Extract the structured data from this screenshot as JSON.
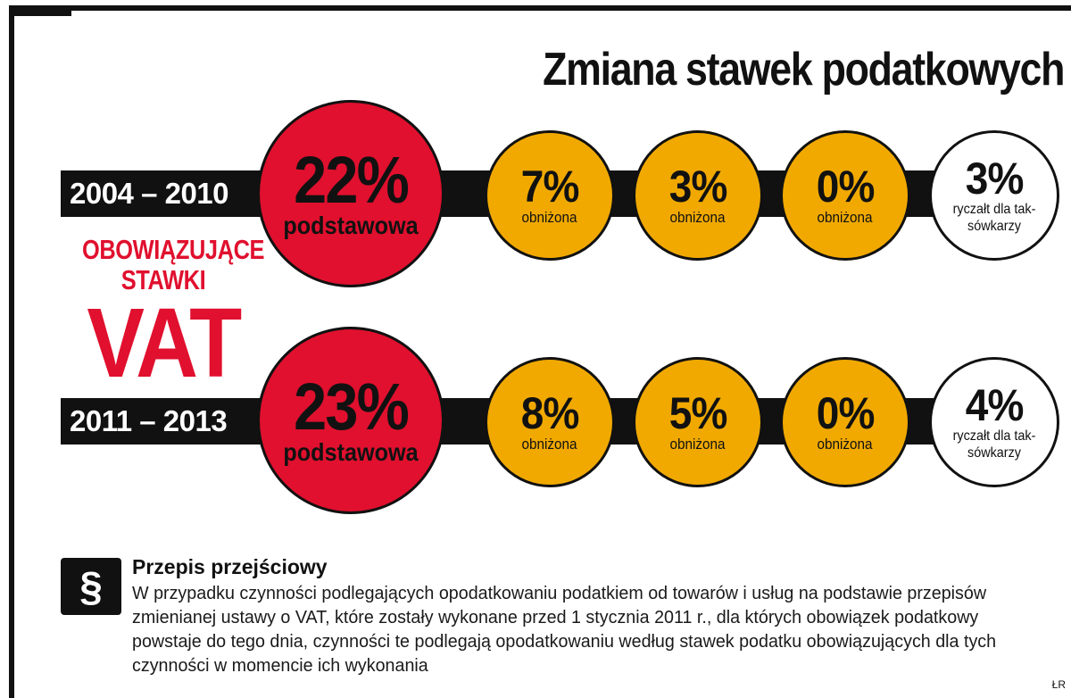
{
  "title": "Zmiana stawek podatkowych",
  "side_label": {
    "line1": "OBOWIĄZUJĄCE",
    "line2": "STAWKI",
    "big": "VAT"
  },
  "colors": {
    "red": "#e0102e",
    "amber": "#f1a900",
    "black": "#111111",
    "white": "#ffffff"
  },
  "rows": [
    {
      "period": "2004 – 2010",
      "rates": [
        {
          "value": "22%",
          "label": "podstawowa"
        },
        {
          "value": "7%",
          "label": "obniżona"
        },
        {
          "value": "3%",
          "label": "obniżona"
        },
        {
          "value": "0%",
          "label": "obniżona"
        },
        {
          "value": "3%",
          "label": "ryczałt dla tak-sówkarzy"
        }
      ]
    },
    {
      "period": "2011 – 2013",
      "rates": [
        {
          "value": "23%",
          "label": "podstawowa"
        },
        {
          "value": "8%",
          "label": "obniżona"
        },
        {
          "value": "5%",
          "label": "obniżona"
        },
        {
          "value": "0%",
          "label": "obniżona"
        },
        {
          "value": "4%",
          "label": "ryczałt dla tak-sówkarzy"
        }
      ]
    }
  ],
  "note": {
    "icon": "paragraph-icon",
    "symbol": "§",
    "title": "Przepis przejściowy",
    "body": "W przypadku czynności podlegających opodatkowaniu podatkiem od towarów i usług na podstawie przepisów zmienianej ustawy o VAT, które zostały wykonane przed 1 stycznia 2011 r., dla których obowiązek podatkowy powstaje do tego dnia, czynności te podlegają opodatkowaniu według stawek podatku obowiązujących dla tych czynności w momencie ich wykonania"
  },
  "credit": "ŁR"
}
